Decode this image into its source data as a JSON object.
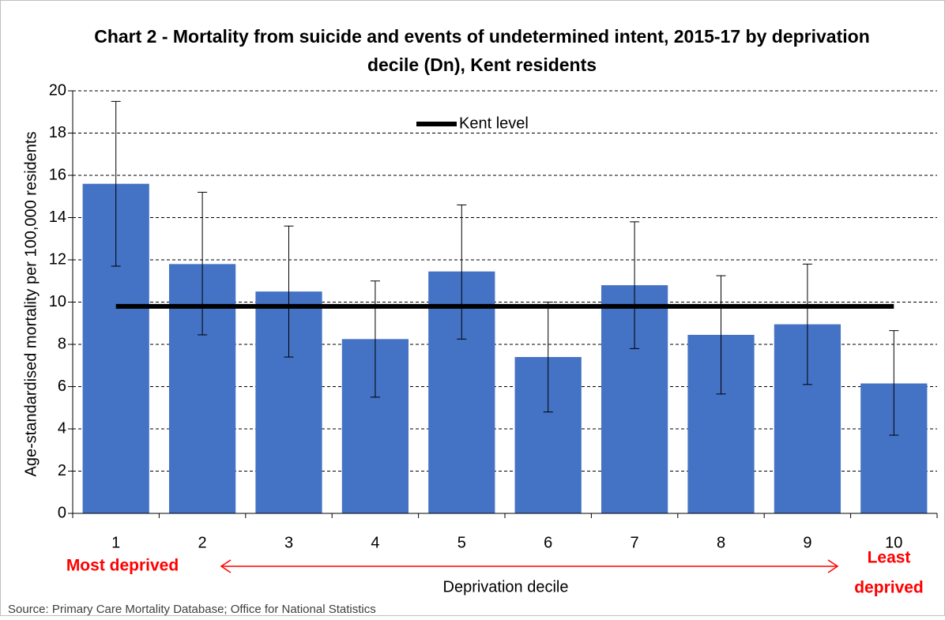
{
  "chart_data": {
    "type": "bar",
    "title": [
      "Chart 2 - Mortality from suicide and events of undetermined intent,  2015-17 by deprivation",
      "decile (Dn), Kent residents"
    ],
    "x_label": "Deprivation decile",
    "y_label": "Age-standardised mortality per 100,000 residents",
    "categories": [
      "1",
      "2",
      "3",
      "4",
      "5",
      "6",
      "7",
      "8",
      "9",
      "10"
    ],
    "values": [
      15.6,
      11.8,
      10.5,
      8.25,
      11.45,
      7.4,
      10.8,
      8.45,
      8.95,
      6.15
    ],
    "lower": [
      11.7,
      8.45,
      7.4,
      5.5,
      8.25,
      4.8,
      7.8,
      5.65,
      6.1,
      3.7
    ],
    "upper": [
      19.5,
      15.2,
      13.6,
      11.0,
      14.6,
      10.0,
      13.8,
      11.25,
      11.8,
      8.65
    ],
    "color": "#4472c4",
    "reference_line": {
      "name": "Kent level",
      "value": 9.8,
      "color": "#000000"
    },
    "ylim": [
      0,
      20
    ],
    "yticks": [
      0,
      2,
      4,
      6,
      8,
      10,
      12,
      14,
      16,
      18,
      20
    ],
    "grid": true,
    "annotations": {
      "left": "Most deprived",
      "right": [
        "Least",
        "deprived"
      ]
    },
    "source": "Source: Primary Care Mortality Database; Office for National Statistics"
  }
}
